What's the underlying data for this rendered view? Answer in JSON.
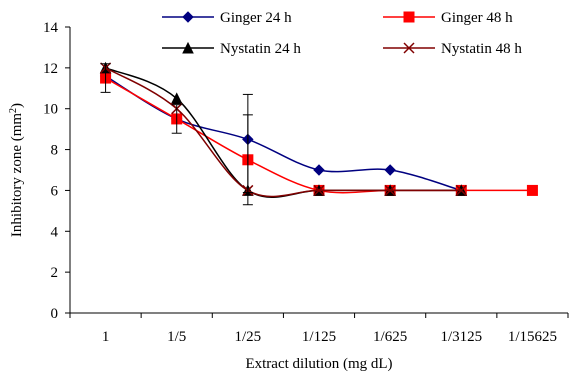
{
  "chart_data": {
    "type": "line",
    "xlabel": "Extract dilution (mg dL)",
    "ylabel_main": "Inhibitory zone (mm",
    "ylabel_sup": "2",
    "ylabel_tail": ")",
    "categories": [
      "1",
      "1/5",
      "1/25",
      "1/125",
      "1/625",
      "1/3125",
      "1/15625"
    ],
    "ylim": [
      0,
      14
    ],
    "yticks": [
      0,
      2,
      4,
      6,
      8,
      10,
      12,
      14
    ],
    "grid": false,
    "legend_position": "top",
    "series": [
      {
        "name": "Ginger 24 h",
        "color": "#000080",
        "marker": "diamond",
        "values": [
          11.6,
          9.5,
          8.5,
          7.0,
          7.0,
          6.0,
          null
        ]
      },
      {
        "name": "Ginger 48 h",
        "color": "#ff0000",
        "marker": "square",
        "values": [
          11.5,
          9.5,
          7.5,
          6.0,
          6.0,
          6.0,
          6.0
        ]
      },
      {
        "name": "Nystatin 24 h",
        "color": "#000000",
        "marker": "triangle",
        "values": [
          12.0,
          10.5,
          6.0,
          6.0,
          6.0,
          6.0,
          null
        ]
      },
      {
        "name": "Nystatin 48 h",
        "color": "#800000",
        "marker": "x",
        "values": [
          12.0,
          10.0,
          6.0,
          6.0,
          6.0,
          6.0,
          null
        ]
      }
    ],
    "error_bars": [
      {
        "category_index": 0,
        "low": 10.8,
        "high": 12.2
      },
      {
        "category_index": 1,
        "low": 8.8,
        "high": 10.2
      },
      {
        "category_index": 2,
        "low": 5.3,
        "high": 10.7
      },
      {
        "category_index": 2,
        "low": 5.9,
        "high": 9.7
      }
    ]
  }
}
